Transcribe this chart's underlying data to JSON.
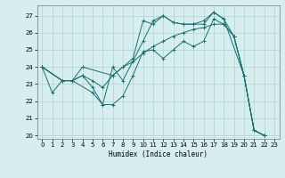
{
  "xlabel": "Humidex (Indice chaleur)",
  "bg_color": "#d6eeee",
  "grid_color": "#b0d4d4",
  "line_color": "#1a7070",
  "xlim": [
    -0.5,
    23.5
  ],
  "ylim": [
    19.8,
    27.6
  ],
  "yticks": [
    20,
    21,
    22,
    23,
    24,
    25,
    26,
    27
  ],
  "xticks": [
    0,
    1,
    2,
    3,
    4,
    5,
    6,
    7,
    8,
    9,
    10,
    11,
    12,
    13,
    14,
    15,
    16,
    17,
    18,
    19,
    20,
    21,
    22,
    23
  ],
  "series": [
    {
      "x": [
        0,
        1,
        2,
        3,
        4,
        5,
        6,
        7,
        8,
        9,
        10,
        11,
        12,
        13,
        14,
        15,
        16,
        17,
        18,
        19,
        20,
        21,
        22
      ],
      "y": [
        24.0,
        22.5,
        23.2,
        23.2,
        23.5,
        22.8,
        21.8,
        21.8,
        22.3,
        23.5,
        24.9,
        25.0,
        24.5,
        25.0,
        25.5,
        25.2,
        25.5,
        26.8,
        26.5,
        25.8,
        23.5,
        20.3,
        20.0
      ]
    },
    {
      "x": [
        0,
        2,
        3,
        4,
        5,
        6,
        7,
        8,
        9,
        10,
        11,
        12,
        13,
        14,
        15,
        16,
        17,
        18,
        19,
        20,
        21,
        22
      ],
      "y": [
        24.0,
        23.2,
        23.2,
        23.5,
        23.2,
        22.8,
        23.5,
        24.0,
        24.3,
        24.8,
        25.2,
        25.5,
        25.8,
        26.0,
        26.2,
        26.3,
        26.5,
        26.5,
        25.8,
        23.5,
        20.3,
        20.0
      ]
    },
    {
      "x": [
        0,
        2,
        3,
        4,
        7,
        9,
        10,
        11,
        12,
        13,
        14,
        15,
        16,
        17,
        18,
        20,
        21,
        22
      ],
      "y": [
        24.0,
        23.2,
        23.2,
        24.0,
        23.5,
        24.5,
        26.7,
        26.5,
        27.0,
        26.6,
        26.5,
        26.5,
        26.5,
        27.2,
        26.8,
        23.5,
        20.3,
        20.0
      ]
    },
    {
      "x": [
        0,
        2,
        3,
        5,
        6,
        7,
        8,
        10,
        11,
        12,
        13,
        14,
        15,
        16,
        17,
        18,
        19,
        20,
        21,
        22
      ],
      "y": [
        24.0,
        23.2,
        23.2,
        22.5,
        21.8,
        24.0,
        23.2,
        25.5,
        26.7,
        27.0,
        26.6,
        26.5,
        26.5,
        26.7,
        27.2,
        26.8,
        25.8,
        23.5,
        20.3,
        20.0
      ]
    }
  ]
}
